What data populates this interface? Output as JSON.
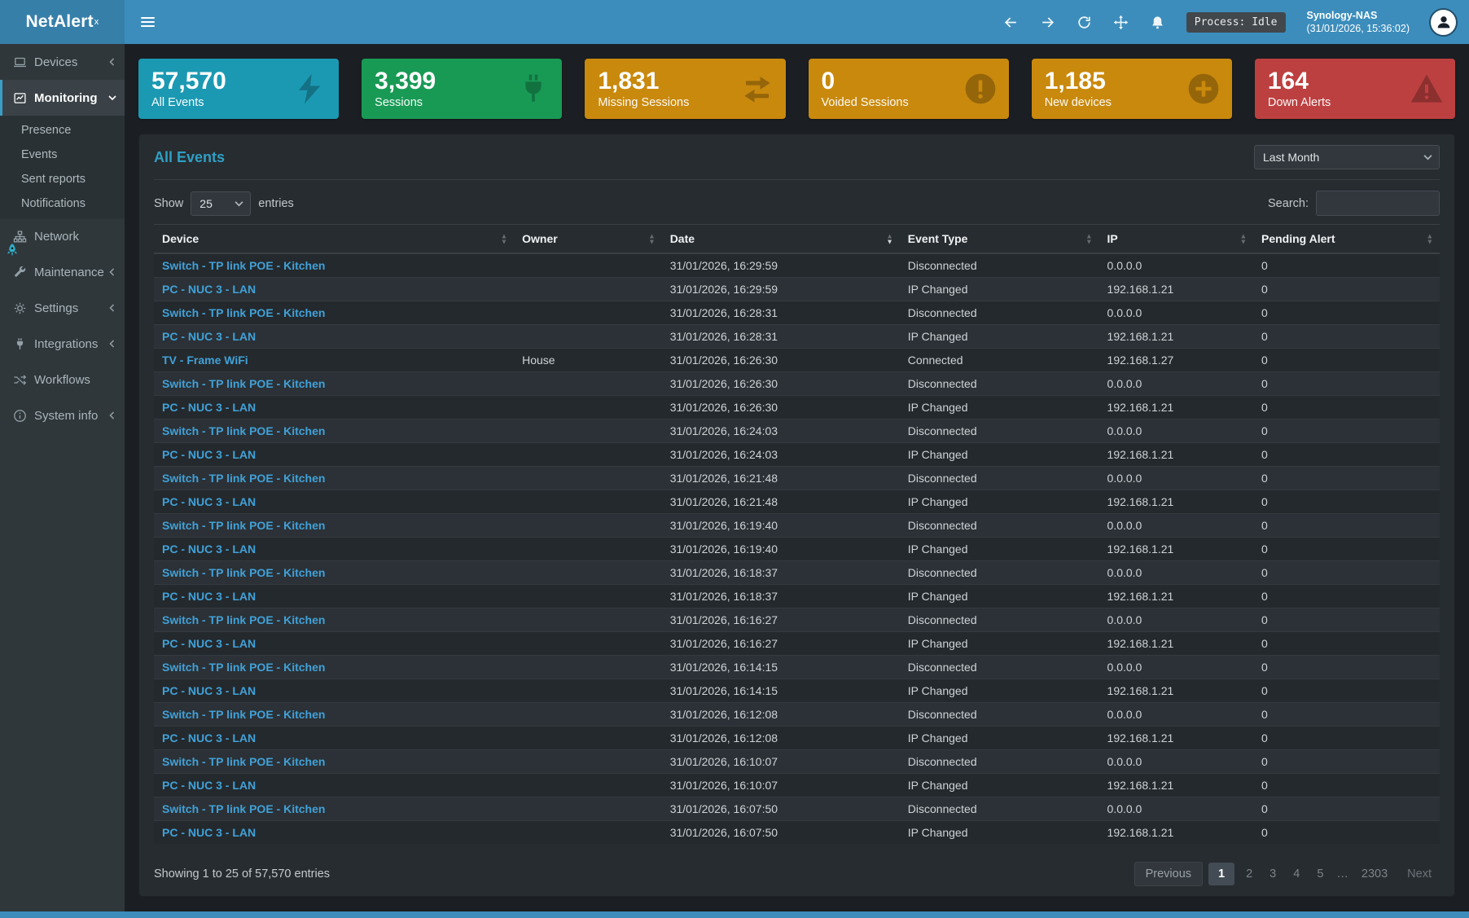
{
  "app": {
    "brand": "NetAlert",
    "brand_sup": "x"
  },
  "topbar": {
    "process_badge": "Process: Idle",
    "host": "Synology-NAS",
    "host_time": "(31/01/2026, 15:36:02)"
  },
  "sidebar": {
    "items": [
      {
        "label": "Devices"
      },
      {
        "label": "Monitoring",
        "active": true
      },
      {
        "label": "Network"
      },
      {
        "label": "Maintenance"
      },
      {
        "label": "Settings"
      },
      {
        "label": "Integrations"
      },
      {
        "label": "Workflows"
      },
      {
        "label": "System info"
      }
    ],
    "submenu": [
      {
        "label": "Presence"
      },
      {
        "label": "Events"
      },
      {
        "label": "Sent reports"
      },
      {
        "label": "Notifications"
      }
    ]
  },
  "stats": [
    {
      "value": "57,570",
      "label": "All Events",
      "color": "#1b99b3",
      "icon": "bolt-icon"
    },
    {
      "value": "3,399",
      "label": "Sessions",
      "color": "#189a55",
      "icon": "plug-icon"
    },
    {
      "value": "1,831",
      "label": "Missing Sessions",
      "color": "#c9890d",
      "icon": "exchange-arrows-icon"
    },
    {
      "value": "0",
      "label": "Voided Sessions",
      "color": "#c9890d",
      "icon": "exclamation-circle-icon"
    },
    {
      "value": "1,185",
      "label": "New devices",
      "color": "#c9890d",
      "icon": "plus-circle-icon"
    },
    {
      "value": "164",
      "label": "Down Alerts",
      "color": "#bd4040",
      "icon": "warning-triangle-icon"
    }
  ],
  "events": {
    "title": "All Events",
    "period_value": "Last Month",
    "show_label": "Show",
    "page_size": "25",
    "entries_label": "entries",
    "search_label": "Search:",
    "columns": [
      "Device",
      "Owner",
      "Date",
      "Event Type",
      "IP",
      "Pending Alert"
    ],
    "rows": [
      [
        "Switch - TP link POE - Kitchen",
        "",
        "31/01/2026, 16:29:59",
        "Disconnected",
        "0.0.0.0",
        "0"
      ],
      [
        "PC - NUC 3 - LAN",
        "",
        "31/01/2026, 16:29:59",
        "IP Changed",
        "192.168.1.21",
        "0"
      ],
      [
        "Switch - TP link POE - Kitchen",
        "",
        "31/01/2026, 16:28:31",
        "Disconnected",
        "0.0.0.0",
        "0"
      ],
      [
        "PC - NUC 3 - LAN",
        "",
        "31/01/2026, 16:28:31",
        "IP Changed",
        "192.168.1.21",
        "0"
      ],
      [
        "TV - Frame WiFi",
        "House",
        "31/01/2026, 16:26:30",
        "Connected",
        "192.168.1.27",
        "0"
      ],
      [
        "Switch - TP link POE - Kitchen",
        "",
        "31/01/2026, 16:26:30",
        "Disconnected",
        "0.0.0.0",
        "0"
      ],
      [
        "PC - NUC 3 - LAN",
        "",
        "31/01/2026, 16:26:30",
        "IP Changed",
        "192.168.1.21",
        "0"
      ],
      [
        "Switch - TP link POE - Kitchen",
        "",
        "31/01/2026, 16:24:03",
        "Disconnected",
        "0.0.0.0",
        "0"
      ],
      [
        "PC - NUC 3 - LAN",
        "",
        "31/01/2026, 16:24:03",
        "IP Changed",
        "192.168.1.21",
        "0"
      ],
      [
        "Switch - TP link POE - Kitchen",
        "",
        "31/01/2026, 16:21:48",
        "Disconnected",
        "0.0.0.0",
        "0"
      ],
      [
        "PC - NUC 3 - LAN",
        "",
        "31/01/2026, 16:21:48",
        "IP Changed",
        "192.168.1.21",
        "0"
      ],
      [
        "Switch - TP link POE - Kitchen",
        "",
        "31/01/2026, 16:19:40",
        "Disconnected",
        "0.0.0.0",
        "0"
      ],
      [
        "PC - NUC 3 - LAN",
        "",
        "31/01/2026, 16:19:40",
        "IP Changed",
        "192.168.1.21",
        "0"
      ],
      [
        "Switch - TP link POE - Kitchen",
        "",
        "31/01/2026, 16:18:37",
        "Disconnected",
        "0.0.0.0",
        "0"
      ],
      [
        "PC - NUC 3 - LAN",
        "",
        "31/01/2026, 16:18:37",
        "IP Changed",
        "192.168.1.21",
        "0"
      ],
      [
        "Switch - TP link POE - Kitchen",
        "",
        "31/01/2026, 16:16:27",
        "Disconnected",
        "0.0.0.0",
        "0"
      ],
      [
        "PC - NUC 3 - LAN",
        "",
        "31/01/2026, 16:16:27",
        "IP Changed",
        "192.168.1.21",
        "0"
      ],
      [
        "Switch - TP link POE - Kitchen",
        "",
        "31/01/2026, 16:14:15",
        "Disconnected",
        "0.0.0.0",
        "0"
      ],
      [
        "PC - NUC 3 - LAN",
        "",
        "31/01/2026, 16:14:15",
        "IP Changed",
        "192.168.1.21",
        "0"
      ],
      [
        "Switch - TP link POE - Kitchen",
        "",
        "31/01/2026, 16:12:08",
        "Disconnected",
        "0.0.0.0",
        "0"
      ],
      [
        "PC - NUC 3 - LAN",
        "",
        "31/01/2026, 16:12:08",
        "IP Changed",
        "192.168.1.21",
        "0"
      ],
      [
        "Switch - TP link POE - Kitchen",
        "",
        "31/01/2026, 16:10:07",
        "Disconnected",
        "0.0.0.0",
        "0"
      ],
      [
        "PC - NUC 3 - LAN",
        "",
        "31/01/2026, 16:10:07",
        "IP Changed",
        "192.168.1.21",
        "0"
      ],
      [
        "Switch - TP link POE - Kitchen",
        "",
        "31/01/2026, 16:07:50",
        "Disconnected",
        "0.0.0.0",
        "0"
      ],
      [
        "PC - NUC 3 - LAN",
        "",
        "31/01/2026, 16:07:50",
        "IP Changed",
        "192.168.1.21",
        "0"
      ]
    ],
    "summary": "Showing 1 to 25 of 57,570 entries",
    "pagination": {
      "previous": "Previous",
      "pages": [
        "1",
        "2",
        "3",
        "4",
        "5"
      ],
      "ellipsis": "…",
      "last": "2303",
      "next": "Next",
      "active": "1"
    }
  },
  "icons": {
    "bolt-icon": "lightning bolt",
    "plug-icon": "power plug",
    "exchange-arrows-icon": "two opposing arrows",
    "exclamation-circle-icon": "! in circle",
    "plus-circle-icon": "+ in circle",
    "warning-triangle-icon": "! in triangle",
    "bell-icon": "notification bell",
    "refresh-icon": "circular arrow",
    "move-icon": "four-direction arrows",
    "back-icon": "left arrow",
    "forward-icon": "right arrow",
    "user-avatar": "person silhouette",
    "rocket-icon": "rocket"
  }
}
